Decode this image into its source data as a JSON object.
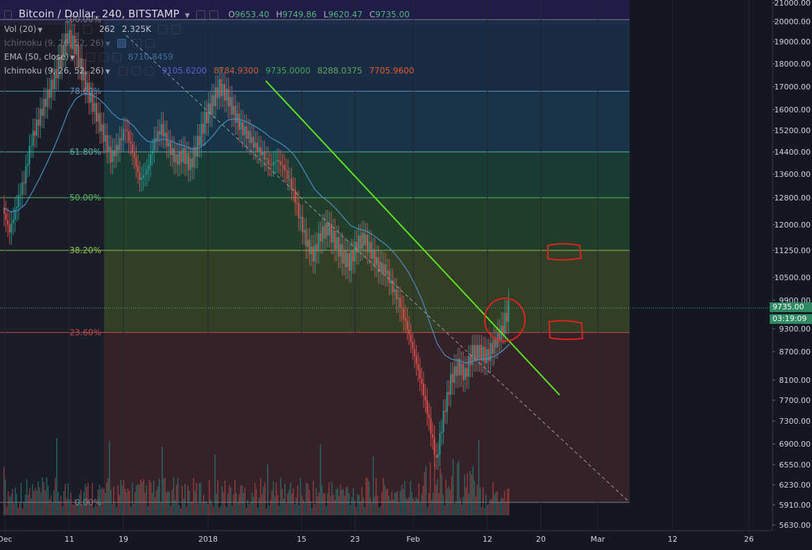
{
  "header": {
    "title": "Bitcoin / Dollar, 240, BITSTAMP",
    "ohlc": [
      {
        "k": "O",
        "v": "9653.40"
      },
      {
        "k": "H",
        "v": "9749.86"
      },
      {
        "k": "L",
        "v": "9620.47"
      },
      {
        "k": "C",
        "v": "9735.00"
      }
    ]
  },
  "indicators": {
    "vol": {
      "label": "Vol (20)",
      "v1": "262",
      "v2": "2.325K"
    },
    "ichimoku_hidden": {
      "label": "Ichimoku (9, 26, 52, 26)"
    },
    "ema": {
      "label": "EMA (50, close)",
      "value": "8710.8459"
    },
    "ichimoku": {
      "label": "Ichimoku (9, 26, 52, 26)",
      "values": [
        "9105.6200",
        "8784.9300",
        "9735.0000",
        "8288.0375",
        "7705.9600"
      ]
    }
  },
  "colors": {
    "background": "#131722",
    "up": "#26a69a",
    "down": "#ef5350",
    "trendline": "#5ce61f",
    "annotation": "#e0231f",
    "price_tag": "#2e8a62"
  },
  "chart_data": {
    "type": "line",
    "ylim": [
      5500,
      21000
    ],
    "y_scale": "log",
    "y_ticks": [
      "5630.00",
      "5910.00",
      "6230.00",
      "6550.00",
      "6900.00",
      "7300.00",
      "7700.00",
      "8100.00",
      "8700.00",
      "9300.00",
      "9900.00",
      "10500.00",
      "11250.00",
      "12000.00",
      "12800.00",
      "13600.00",
      "14400.00",
      "15200.00",
      "16000.00",
      "17000.00",
      "18000.00",
      "19000.00",
      "20000.00",
      "21000.00"
    ],
    "x_ticks": [
      "Dec",
      "11",
      "19",
      "2018",
      "15",
      "23",
      "Feb",
      "12",
      "20",
      "Mar",
      "12",
      "26"
    ],
    "price_series": [
      12500,
      11800,
      12600,
      13400,
      14800,
      15600,
      16400,
      17200,
      18200,
      19300,
      18800,
      17600,
      16600,
      15800,
      15000,
      14200,
      14600,
      15300,
      14400,
      13400,
      13700,
      14800,
      15300,
      14600,
      14100,
      14300,
      13900,
      14700,
      15600,
      16300,
      17000,
      16600,
      15900,
      15300,
      15000,
      14600,
      14300,
      13900,
      14100,
      13800,
      13200,
      12300,
      11500,
      11100,
      11700,
      11900,
      11500,
      11100,
      10900,
      11400,
      11600,
      11200,
      10800,
      10700,
      10200,
      9800,
      9300,
      8600,
      8000,
      7300,
      6600,
      7400,
      8100,
      8400,
      8200,
      8700,
      8700,
      8600,
      8900,
      9200,
      9735
    ],
    "series": [
      {
        "name": "EMA (50, close)",
        "color": "#4b8fc5"
      }
    ],
    "fib_levels": [
      {
        "label": "100.00%",
        "price": 20100,
        "color": "#7a7d86"
      },
      {
        "label": "78.60%",
        "price": 16800,
        "color": "#5b8fbf"
      },
      {
        "label": "61.80%",
        "price": 14400,
        "color": "#57b0a0"
      },
      {
        "label": "50.00%",
        "price": 12800,
        "color": "#57b86a"
      },
      {
        "label": "38.20%",
        "price": 11250,
        "color": "#8cc14c"
      },
      {
        "label": "23.60%",
        "price": 9200,
        "color": "#c24b4b"
      },
      {
        "label": "0.00%",
        "price": 5950,
        "color": "#7a7d86"
      }
    ],
    "current_price": "9735.00",
    "countdown": "03:19:09",
    "trendline": {
      "from": [
        57,
        17250
      ],
      "to": [
        110,
        7800
      ]
    }
  }
}
